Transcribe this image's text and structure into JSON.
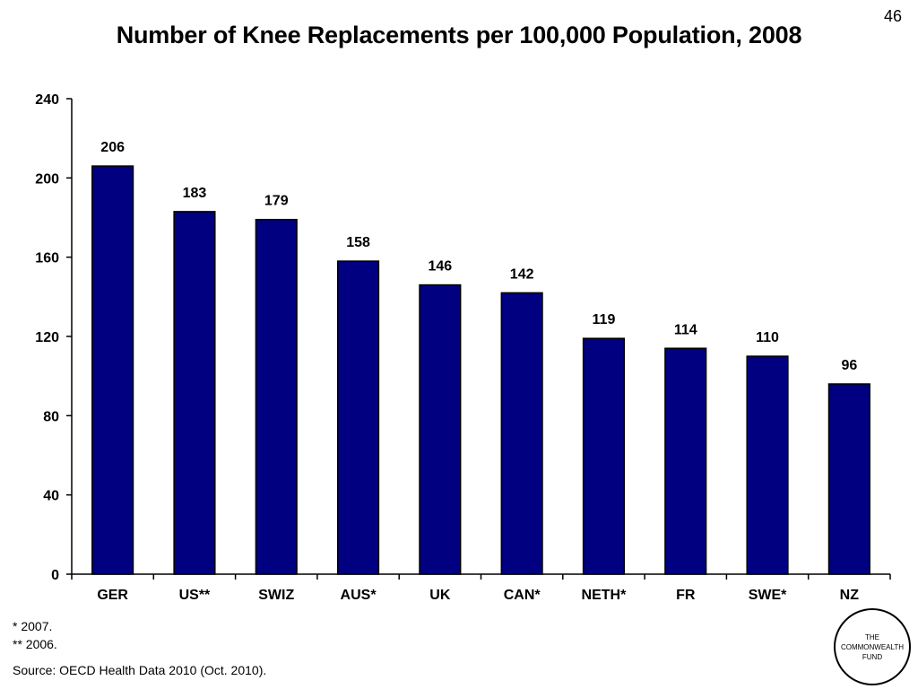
{
  "page_number": "46",
  "footnotes": [
    "* 2007.",
    "** 2006."
  ],
  "source": "Source: OECD Health Data 2010 (Oct. 2010).",
  "logo": {
    "lines": [
      "THE",
      "COMMONWEALTH",
      "FUND"
    ]
  },
  "colors": {
    "bar_fill": "#000080",
    "bar_stroke": "#000000"
  },
  "chart_data": {
    "type": "bar",
    "title": "Number of Knee Replacements per 100,000 Population, 2008",
    "xlabel": "",
    "ylabel": "",
    "categories": [
      "GER",
      "US**",
      "SWIZ",
      "AUS*",
      "UK",
      "CAN*",
      "NETH*",
      "FR",
      "SWE*",
      "NZ"
    ],
    "values": [
      206,
      183,
      179,
      158,
      146,
      142,
      119,
      114,
      110,
      96
    ],
    "ylim": [
      0,
      240
    ],
    "yticks": [
      0,
      40,
      80,
      120,
      160,
      200,
      240
    ],
    "grid": false,
    "legend": "none",
    "data_labels": true
  }
}
